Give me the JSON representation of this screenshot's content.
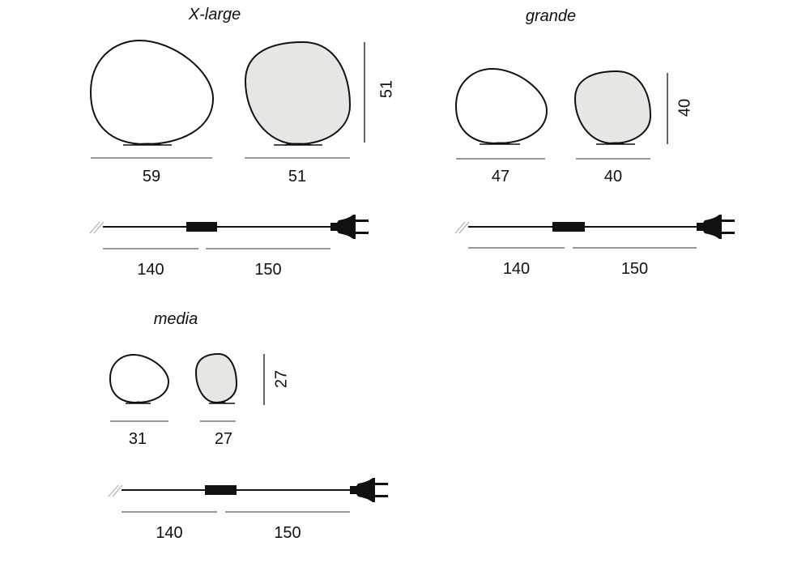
{
  "sections": [
    {
      "title": "X-large",
      "lamps": [
        {
          "width_label": "59",
          "fill": "#ffffff"
        },
        {
          "width_label": "51",
          "fill": "#e6e6e3"
        }
      ],
      "height_label": "51",
      "cable": {
        "first_label": "140",
        "second_label": "150"
      }
    },
    {
      "title": "grande",
      "lamps": [
        {
          "width_label": "47",
          "fill": "#ffffff"
        },
        {
          "width_label": "40",
          "fill": "#e6e6e3"
        }
      ],
      "height_label": "40",
      "cable": {
        "first_label": "140",
        "second_label": "150"
      }
    },
    {
      "title": "media",
      "lamps": [
        {
          "width_label": "31",
          "fill": "#ffffff"
        },
        {
          "width_label": "27",
          "fill": "#e6e6e3"
        }
      ],
      "height_label": "27",
      "cable": {
        "first_label": "140",
        "second_label": "150"
      }
    }
  ]
}
